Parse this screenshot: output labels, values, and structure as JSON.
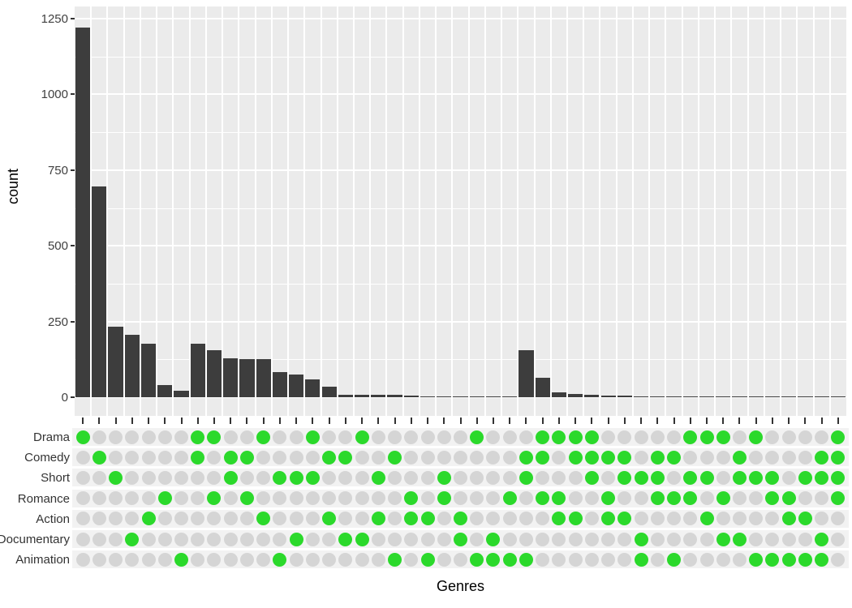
{
  "chart_data": {
    "type": "bar",
    "subtype": "upset-plot",
    "title": "",
    "ylabel": "count",
    "xlabel": "Genres",
    "ylim": [
      0,
      1250
    ],
    "yticks": [
      0,
      250,
      500,
      750,
      1000,
      1250
    ],
    "grid": "on",
    "bar_color": "#3D3D3D",
    "panel_color": "#EBEBEB",
    "stripe_color": "#F2F2F2",
    "dot_active_color": "#2BD92B",
    "dot_inactive_color": "#D5D5D5",
    "set_rows": [
      "Drama",
      "Comedy",
      "Short",
      "Romance",
      "Action",
      "Documentary",
      "Animation"
    ],
    "combinations": [
      {
        "sets": [
          "Drama"
        ],
        "count": 1220
      },
      {
        "sets": [
          "Comedy"
        ],
        "count": 695
      },
      {
        "sets": [
          "Short"
        ],
        "count": 232
      },
      {
        "sets": [
          "Documentary"
        ],
        "count": 206
      },
      {
        "sets": [
          "Action"
        ],
        "count": 177
      },
      {
        "sets": [
          "Romance"
        ],
        "count": 40
      },
      {
        "sets": [
          "Animation"
        ],
        "count": 22
      },
      {
        "sets": [
          "Drama",
          "Comedy"
        ],
        "count": 177
      },
      {
        "sets": [
          "Drama",
          "Romance"
        ],
        "count": 155
      },
      {
        "sets": [
          "Comedy",
          "Short"
        ],
        "count": 128
      },
      {
        "sets": [
          "Comedy",
          "Romance"
        ],
        "count": 127
      },
      {
        "sets": [
          "Drama",
          "Action"
        ],
        "count": 126
      },
      {
        "sets": [
          "Short",
          "Animation"
        ],
        "count": 83
      },
      {
        "sets": [
          "Short",
          "Documentary"
        ],
        "count": 74
      },
      {
        "sets": [
          "Drama",
          "Short"
        ],
        "count": 58
      },
      {
        "sets": [
          "Comedy",
          "Action"
        ],
        "count": 36
      },
      {
        "sets": [
          "Comedy",
          "Documentary"
        ],
        "count": 9
      },
      {
        "sets": [
          "Drama",
          "Documentary"
        ],
        "count": 8
      },
      {
        "sets": [
          "Short",
          "Action"
        ],
        "count": 8
      },
      {
        "sets": [
          "Comedy",
          "Animation"
        ],
        "count": 7
      },
      {
        "sets": [
          "Romance",
          "Action"
        ],
        "count": 6
      },
      {
        "sets": [
          "Action",
          "Animation"
        ],
        "count": 4
      },
      {
        "sets": [
          "Short",
          "Romance"
        ],
        "count": 4
      },
      {
        "sets": [
          "Action",
          "Documentary"
        ],
        "count": 3
      },
      {
        "sets": [
          "Drama",
          "Animation"
        ],
        "count": 2
      },
      {
        "sets": [
          "Documentary",
          "Animation"
        ],
        "count": 2
      },
      {
        "sets": [
          "Romance",
          "Animation"
        ],
        "count": 1
      },
      {
        "sets": [
          "Comedy",
          "Short",
          "Animation"
        ],
        "count": 155
      },
      {
        "sets": [
          "Drama",
          "Comedy",
          "Romance"
        ],
        "count": 64
      },
      {
        "sets": [
          "Drama",
          "Romance",
          "Action"
        ],
        "count": 15
      },
      {
        "sets": [
          "Drama",
          "Comedy",
          "Action"
        ],
        "count": 10
      },
      {
        "sets": [
          "Drama",
          "Comedy",
          "Short"
        ],
        "count": 8
      },
      {
        "sets": [
          "Comedy",
          "Romance",
          "Action"
        ],
        "count": 6
      },
      {
        "sets": [
          "Comedy",
          "Short",
          "Action"
        ],
        "count": 6
      },
      {
        "sets": [
          "Short",
          "Documentary",
          "Animation"
        ],
        "count": 4
      },
      {
        "sets": [
          "Comedy",
          "Short",
          "Romance"
        ],
        "count": 4
      },
      {
        "sets": [
          "Comedy",
          "Romance",
          "Animation"
        ],
        "count": 2
      },
      {
        "sets": [
          "Drama",
          "Short",
          "Romance"
        ],
        "count": 2
      },
      {
        "sets": [
          "Drama",
          "Short",
          "Action"
        ],
        "count": 2
      },
      {
        "sets": [
          "Drama",
          "Romance",
          "Documentary"
        ],
        "count": 1
      },
      {
        "sets": [
          "Comedy",
          "Short",
          "Documentary"
        ],
        "count": 1
      },
      {
        "sets": [
          "Drama",
          "Short",
          "Animation"
        ],
        "count": 1
      },
      {
        "sets": [
          "Short",
          "Romance",
          "Animation"
        ],
        "count": 1
      },
      {
        "sets": [
          "Romance",
          "Action",
          "Animation"
        ],
        "count": 1
      },
      {
        "sets": [
          "Short",
          "Action",
          "Animation"
        ],
        "count": 1
      },
      {
        "sets": [
          "Comedy",
          "Short",
          "Documentary",
          "Animation"
        ],
        "count": 2
      },
      {
        "sets": [
          "Drama",
          "Comedy",
          "Short",
          "Romance"
        ],
        "count": 2
      }
    ]
  }
}
